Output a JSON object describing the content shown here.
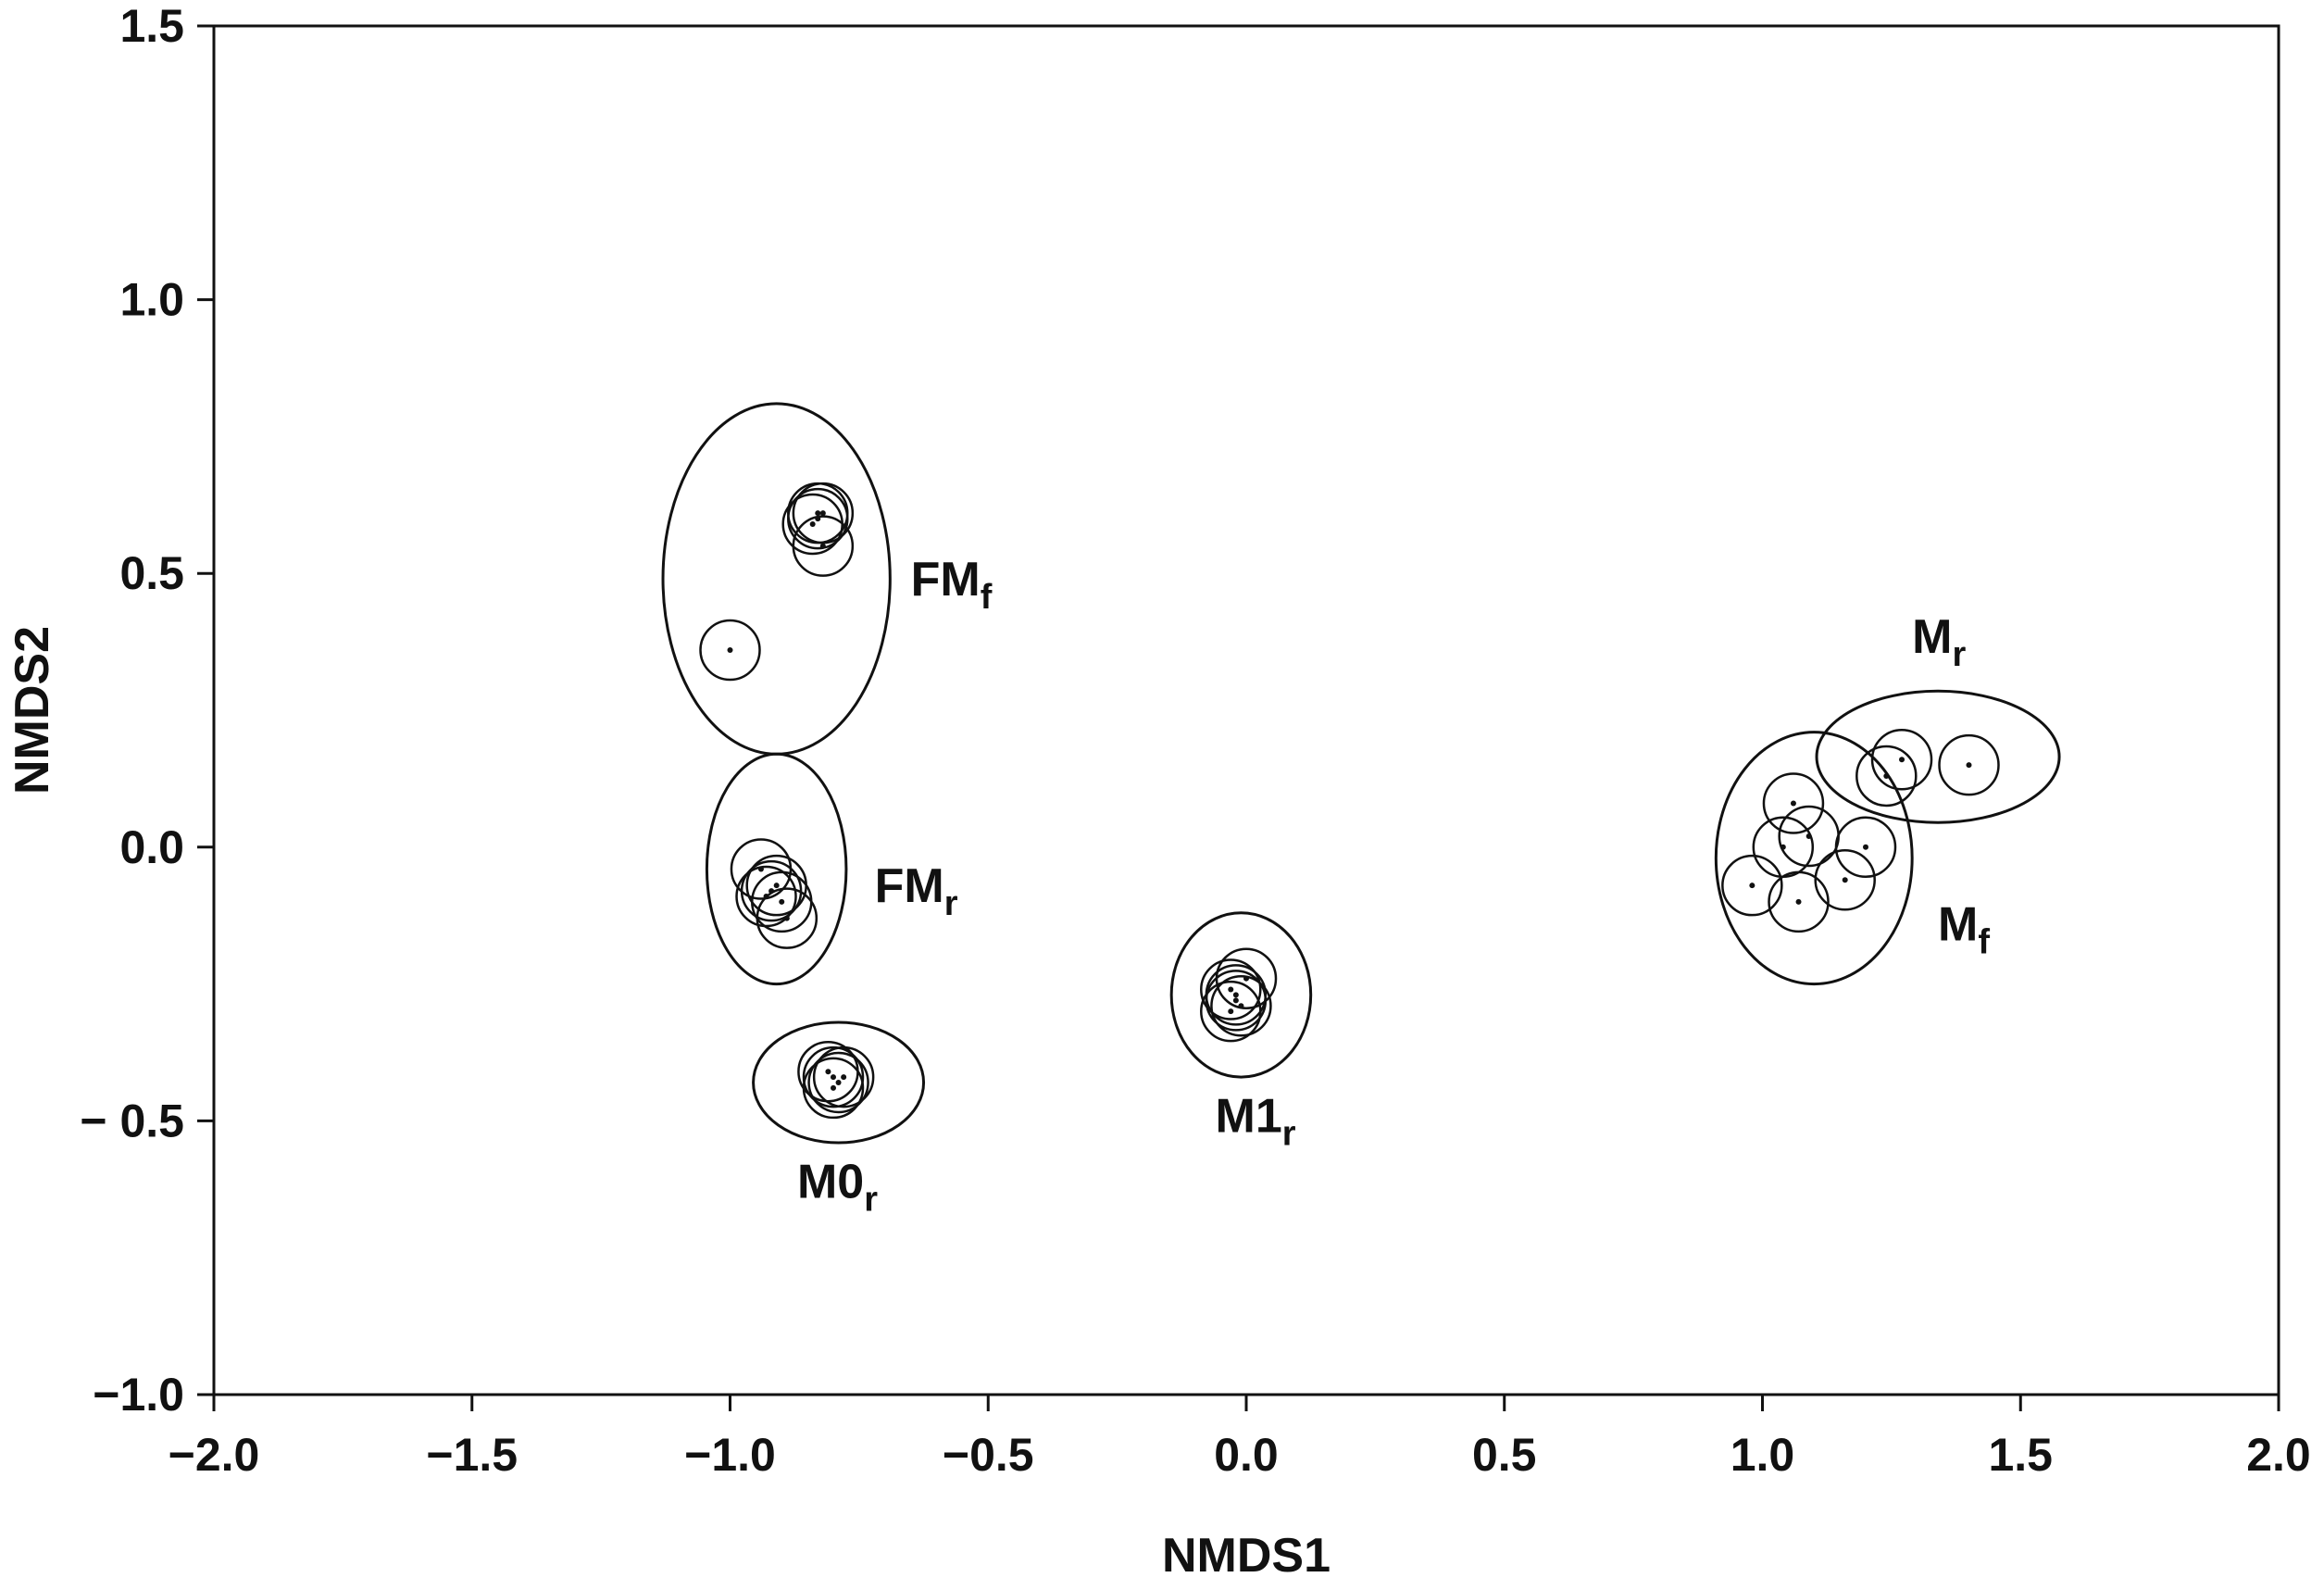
{
  "chart_data": {
    "type": "scatter",
    "xlabel": "NMDS1",
    "ylabel": "NMDS2",
    "xlim": [
      -2.0,
      2.0
    ],
    "ylim": [
      -1.0,
      1.5
    ],
    "x_ticks": [
      "−2.0",
      "−1.5",
      "−1.0",
      "−0.5",
      "0.0",
      "0.5",
      "1.0",
      "1.5",
      "2.0"
    ],
    "x_tick_values": [
      -2.0,
      -1.5,
      -1.0,
      -0.5,
      0.0,
      0.5,
      1.0,
      1.5,
      2.0
    ],
    "y_ticks": [
      "1.5",
      "1.0",
      "0.5",
      "0.0",
      "− 0.5",
      "−1.0"
    ],
    "y_tick_values": [
      1.5,
      1.0,
      0.5,
      0.0,
      -0.5,
      -1.0
    ],
    "grid": false,
    "groups": [
      {
        "label": "FM",
        "sub": "f",
        "ellipse": {
          "cx": -0.91,
          "cy": 0.49,
          "rx": 0.22,
          "ry": 0.32
        },
        "points": [
          [
            -0.83,
            0.6
          ],
          [
            -0.82,
            0.61
          ],
          [
            -0.84,
            0.59
          ],
          [
            -0.83,
            0.61
          ],
          [
            -0.82,
            0.55
          ],
          [
            -1.0,
            0.36
          ]
        ]
      },
      {
        "label": "FM",
        "sub": "r",
        "ellipse": {
          "cx": -0.91,
          "cy": -0.04,
          "rx": 0.135,
          "ry": 0.21
        },
        "points": [
          [
            -0.94,
            -0.04
          ],
          [
            -0.91,
            -0.07
          ],
          [
            -0.93,
            -0.09
          ],
          [
            -0.9,
            -0.1
          ],
          [
            -0.89,
            -0.13
          ],
          [
            -0.92,
            -0.08
          ]
        ]
      },
      {
        "label": "M0",
        "sub": "r",
        "ellipse": {
          "cx": -0.79,
          "cy": -0.43,
          "rx": 0.165,
          "ry": 0.11
        },
        "points": [
          [
            -0.8,
            -0.42
          ],
          [
            -0.78,
            -0.42
          ],
          [
            -0.79,
            -0.43
          ],
          [
            -0.8,
            -0.44
          ],
          [
            -0.81,
            -0.41
          ]
        ]
      },
      {
        "label": "M1",
        "sub": "r",
        "ellipse": {
          "cx": -0.01,
          "cy": -0.27,
          "rx": 0.135,
          "ry": 0.15
        },
        "points": [
          [
            0.0,
            -0.24
          ],
          [
            -0.03,
            -0.26
          ],
          [
            -0.02,
            -0.27
          ],
          [
            -0.01,
            -0.29
          ],
          [
            -0.03,
            -0.3
          ],
          [
            -0.02,
            -0.28
          ]
        ]
      },
      {
        "label": "M",
        "sub": "r",
        "ellipse": {
          "cx": 1.34,
          "cy": 0.165,
          "rx": 0.235,
          "ry": 0.12
        },
        "points": [
          [
            1.27,
            0.16
          ],
          [
            1.24,
            0.13
          ],
          [
            1.4,
            0.15
          ]
        ]
      },
      {
        "label": "M",
        "sub": "f",
        "ellipse": {
          "cx": 1.1,
          "cy": -0.02,
          "rx": 0.19,
          "ry": 0.23
        },
        "points": [
          [
            1.06,
            0.08
          ],
          [
            1.04,
            0.0
          ],
          [
            1.09,
            0.02
          ],
          [
            1.2,
            0.0
          ],
          [
            0.98,
            -0.07
          ],
          [
            1.07,
            -0.1
          ],
          [
            1.16,
            -0.06
          ]
        ]
      }
    ]
  }
}
